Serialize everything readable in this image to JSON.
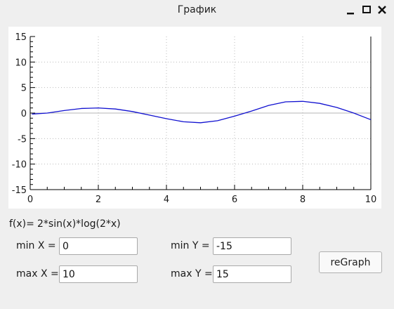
{
  "window": {
    "title": "График"
  },
  "function": {
    "label": "f(x)=",
    "expression": "2*sin(x)*log(2*x)"
  },
  "fields": {
    "min_x": {
      "label": "min X =",
      "value": "0"
    },
    "max_x": {
      "label": "max X =",
      "value": "10"
    },
    "min_y": {
      "label": "min Y =",
      "value": "-15"
    },
    "max_y": {
      "label": "max Y =",
      "value": "15"
    }
  },
  "buttons": {
    "regraph": "reGraph"
  },
  "colors": {
    "curve": "#1010d0",
    "grid": "#bbbbbb",
    "zero_line": "#b4b4b4"
  },
  "chart_data": {
    "type": "line",
    "title": "",
    "xlabel": "",
    "ylabel": "",
    "xlim": [
      0,
      10
    ],
    "ylim": [
      -15,
      15
    ],
    "x_ticks": [
      "0",
      "2",
      "4",
      "6",
      "8",
      "10"
    ],
    "y_ticks": [
      "15",
      "10",
      "5",
      "0",
      "-5",
      "-10",
      "-15"
    ],
    "grid": true,
    "series": [
      {
        "values_x": [
          0.05,
          0.5,
          1,
          1.5,
          2,
          2.5,
          3,
          3.5,
          4,
          4.5,
          5,
          5.5,
          6,
          6.5,
          7,
          7.5,
          8,
          8.5,
          9,
          9.5,
          10
        ],
        "values_y": [
          -0.2,
          0,
          0.5,
          0.9,
          1.0,
          0.8,
          0.3,
          -0.4,
          -1.1,
          -1.7,
          -1.9,
          -1.5,
          -0.6,
          0.4,
          1.5,
          2.2,
          2.3,
          1.9,
          1.1,
          0.0,
          -1.3
        ]
      }
    ]
  }
}
